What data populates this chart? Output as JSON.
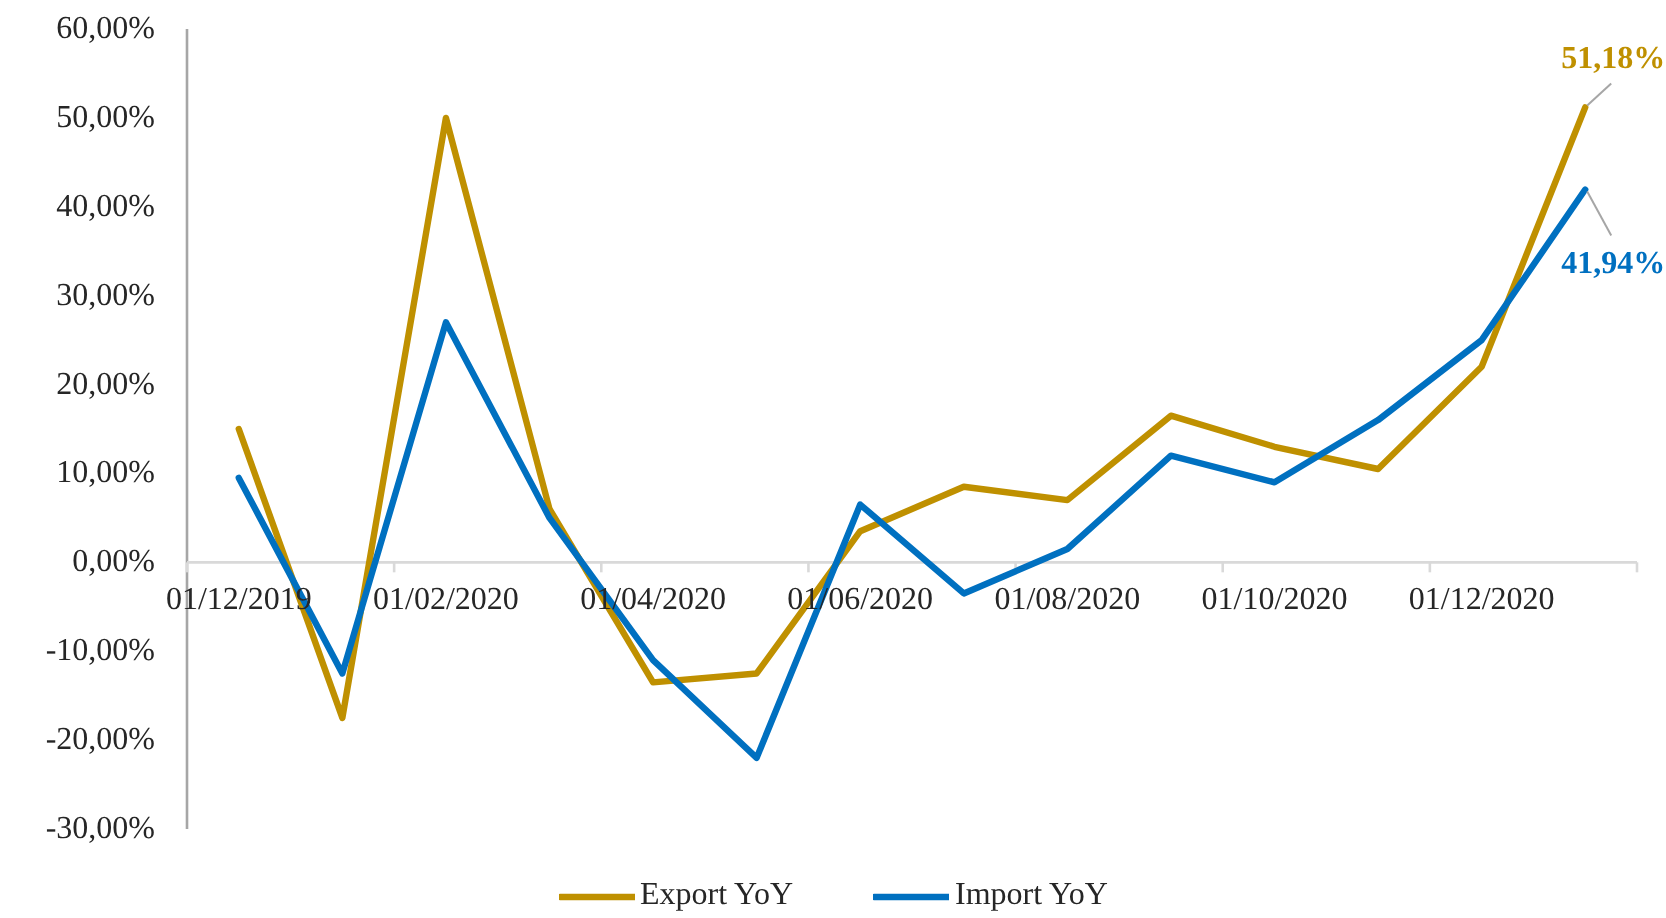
{
  "chart_data": {
    "type": "line",
    "categories": [
      "01/12/2019",
      null,
      "01/02/2020",
      null,
      "01/04/2020",
      null,
      "01/06/2020",
      null,
      "01/08/2020",
      null,
      "01/10/2020",
      null,
      "01/12/2020",
      null
    ],
    "series": [
      {
        "name": "Export YoY",
        "color": "#bf9000",
        "values": [
          15,
          -17.5,
          50,
          6,
          -13.5,
          -12.5,
          3.5,
          8.5,
          7,
          16.5,
          13,
          10.5,
          22,
          51.18
        ],
        "value_labels": [
          null,
          null,
          null,
          null,
          null,
          null,
          null,
          null,
          null,
          null,
          null,
          null,
          null,
          "51,18%"
        ]
      },
      {
        "name": "Import YoY",
        "color": "#0070c0",
        "values": [
          9.5,
          -12.5,
          27,
          5,
          -11,
          -22,
          6.5,
          -3.5,
          1.5,
          12,
          9,
          16,
          25,
          41.94
        ],
        "value_labels": [
          null,
          null,
          null,
          null,
          null,
          null,
          null,
          null,
          null,
          null,
          null,
          null,
          null,
          "41,94%"
        ]
      }
    ],
    "ylim": [
      -30,
      60
    ],
    "yticks": [
      {
        "value": -30,
        "label": "-30,00%"
      },
      {
        "value": -20,
        "label": "-20,00%"
      },
      {
        "value": -10,
        "label": "-10,00%"
      },
      {
        "value": 0,
        "label": "0,00%"
      },
      {
        "value": 10,
        "label": "10,00%"
      },
      {
        "value": 20,
        "label": "20,00%"
      },
      {
        "value": 30,
        "label": "30,00%"
      },
      {
        "value": 40,
        "label": "40,00%"
      },
      {
        "value": 50,
        "label": "50,00%"
      },
      {
        "value": 60,
        "label": "60,00%"
      }
    ],
    "grid": false,
    "legend": "bottom",
    "marker": "none",
    "line_style": "solid"
  }
}
